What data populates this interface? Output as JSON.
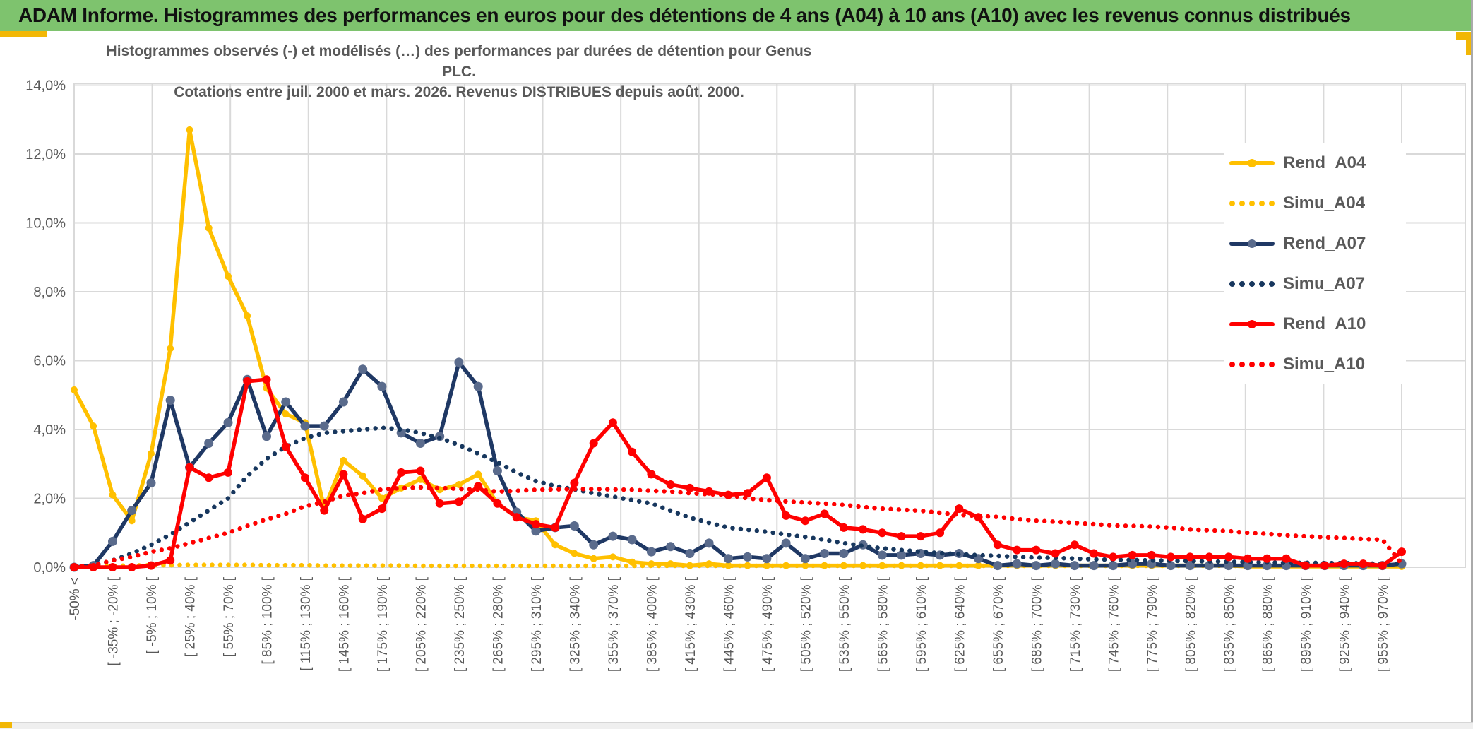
{
  "header": {
    "title": "ADAM Informe. Histogrammes des performances en euros pour des détentions de 4 ans (A04) à 10 ans (A10) avec les revenus connus distribués",
    "bg_color": "#7EC36E",
    "accent_color": "#F2B705"
  },
  "chart_data": {
    "type": "line",
    "title_line1": "Histogrammes observés (-) et modélisés (…) des performances par durées de détention pour Genus PLC.",
    "title_line2": "Cotations entre juil. 2000 et mars. 2026. Revenus DISTRIBUES depuis août. 2000.",
    "ylabel": "",
    "xlabel": "",
    "ylim": [
      0,
      14
    ],
    "y_ticks": [
      "0,0%",
      "2,0%",
      "4,0%",
      "6,0%",
      "8,0%",
      "10,0%",
      "12,0%",
      "14,0%"
    ],
    "grid": true,
    "legend_position": "right-overlay",
    "points_per_label": 2,
    "x_labels": [
      "-50% <",
      "[ -35% ; -20% [",
      "[ -5% ; 10% [",
      "[ 25% ; 40% [",
      "[ 55% ; 70% [",
      "[ 85% ; 100% [",
      "[ 115% ; 130% [",
      "[ 145% ; 160% [",
      "[ 175% ; 190% [",
      "[ 205% ; 220% [",
      "[ 235% ; 250% [",
      "[ 265% ; 280% [",
      "[ 295% ; 310% [",
      "[ 325% ; 340% [",
      "[ 355% ; 370% [",
      "[ 385% ; 400% [",
      "[ 415% ; 430% [",
      "[ 445% ; 460% [",
      "[ 475% ; 490% [",
      "[ 505% ; 520% [",
      "[ 535% ; 550% [",
      "[ 565% ; 580% [",
      "[ 595% ; 610% [",
      "[ 625% ; 640% [",
      "[ 655% ; 670% [",
      "[ 685% ; 700% [",
      "[ 715% ; 730% [",
      "[ 745% ; 760% [",
      "[ 775% ; 790% [",
      "[ 805% ; 820% [",
      "[ 835% ; 850% [",
      "[ 865% ; 880% [",
      "[ 895% ; 910% [",
      "[ 925% ; 940% [",
      "[ 955% ; 970% ["
    ],
    "colors": {
      "gold": "#FFC000",
      "navy": "#1F3864",
      "navy_marker": "#5A6B8C",
      "red": "#FF0000",
      "grid": "#D9D9D9",
      "axis_text": "#595959"
    },
    "series": [
      {
        "name": "Rend_A04",
        "style": "solid",
        "color": "#FFC000",
        "marker_color": "#FFC000",
        "marker_r": 5,
        "values": [
          5.15,
          4.1,
          2.1,
          1.35,
          3.3,
          6.35,
          12.7,
          9.85,
          8.45,
          7.3,
          5.2,
          4.45,
          4.2,
          1.7,
          3.1,
          2.65,
          2.0,
          2.3,
          2.55,
          2.25,
          2.4,
          2.7,
          1.85,
          1.45,
          1.35,
          0.65,
          0.4,
          0.25,
          0.3,
          0.15,
          0.1,
          0.1,
          0.05,
          0.1,
          0.05,
          0.05,
          0.05,
          0.05,
          0.05,
          0.05,
          0.05,
          0.05,
          0.05,
          0.05,
          0.05,
          0.05,
          0.05,
          0.05,
          0.05,
          0.05,
          0.05,
          0.05,
          0.05,
          0.05,
          0.05,
          0.05,
          0.05,
          0.05,
          0.05,
          0.05,
          0.05,
          0.02,
          0.02,
          0.02,
          0.02,
          0.02,
          0.02,
          0.02,
          0.02,
          0.02
        ]
      },
      {
        "name": "Simu_A04",
        "style": "dotted",
        "color": "#FFC000",
        "values": [
          0.02,
          0.03,
          0.04,
          0.05,
          0.06,
          0.06,
          0.07,
          0.07,
          0.07,
          0.07,
          0.06,
          0.06,
          0.06,
          0.05,
          0.05,
          0.05,
          0.05,
          0.05,
          0.04,
          0.04,
          0.04,
          0.04,
          0.04,
          0.04,
          0.04,
          0.04,
          0.04,
          0.04,
          0.04,
          0.04,
          0.04,
          0.04,
          0.04,
          0.04,
          0.04,
          0.04,
          0.04,
          0.04,
          0.04,
          0.04,
          0.04,
          0.04,
          0.04,
          0.04,
          0.04,
          0.04,
          0.04,
          0.04,
          0.04,
          0.04,
          0.04,
          0.04,
          0.04,
          0.04,
          0.04,
          0.04,
          0.04,
          0.04,
          0.04,
          0.04,
          0.04,
          0.04,
          0.04,
          0.04,
          0.04,
          0.04,
          0.04,
          0.04,
          0.04,
          0.04
        ]
      },
      {
        "name": "Rend_A07",
        "style": "solid",
        "color": "#1F3864",
        "marker_color": "#5A6B8C",
        "marker_r": 6.5,
        "values": [
          0.0,
          0.05,
          0.75,
          1.65,
          2.45,
          4.85,
          2.9,
          3.6,
          4.2,
          5.45,
          3.8,
          4.8,
          4.1,
          4.1,
          4.8,
          5.75,
          5.25,
          3.9,
          3.6,
          3.8,
          5.95,
          5.25,
          2.8,
          1.6,
          1.05,
          1.15,
          1.2,
          0.65,
          0.9,
          0.8,
          0.45,
          0.6,
          0.4,
          0.7,
          0.25,
          0.3,
          0.25,
          0.7,
          0.25,
          0.4,
          0.4,
          0.65,
          0.35,
          0.35,
          0.4,
          0.35,
          0.4,
          0.25,
          0.05,
          0.1,
          0.05,
          0.1,
          0.05,
          0.05,
          0.05,
          0.1,
          0.1,
          0.05,
          0.05,
          0.05,
          0.05,
          0.05,
          0.05,
          0.05,
          0.05,
          0.05,
          0.05,
          0.05,
          0.05,
          0.1
        ]
      },
      {
        "name": "Simu_A07",
        "style": "dotted",
        "color": "#17375E",
        "values": [
          0.02,
          0.05,
          0.2,
          0.4,
          0.65,
          0.95,
          1.3,
          1.65,
          2.0,
          2.65,
          3.15,
          3.5,
          3.75,
          3.9,
          3.95,
          4.0,
          4.05,
          4.0,
          3.9,
          3.75,
          3.55,
          3.3,
          3.05,
          2.75,
          2.5,
          2.36,
          2.26,
          2.15,
          2.05,
          1.95,
          1.85,
          1.64,
          1.44,
          1.29,
          1.15,
          1.09,
          1.03,
          0.95,
          0.88,
          0.8,
          0.7,
          0.62,
          0.55,
          0.5,
          0.45,
          0.41,
          0.38,
          0.35,
          0.33,
          0.3,
          0.28,
          0.27,
          0.25,
          0.23,
          0.22,
          0.21,
          0.2,
          0.19,
          0.18,
          0.17,
          0.16,
          0.15,
          0.14,
          0.13,
          0.13,
          0.12,
          0.12,
          0.11,
          0.1,
          0.1
        ]
      },
      {
        "name": "Rend_A10",
        "style": "solid",
        "color": "#FF0000",
        "marker_color": "#FF0000",
        "marker_r": 6,
        "values": [
          0.0,
          0.0,
          0.0,
          0.0,
          0.05,
          0.2,
          2.9,
          2.6,
          2.75,
          5.4,
          5.45,
          3.5,
          2.6,
          1.65,
          2.7,
          1.4,
          1.7,
          2.75,
          2.8,
          1.85,
          1.9,
          2.35,
          1.85,
          1.45,
          1.25,
          1.15,
          2.45,
          3.6,
          4.2,
          3.35,
          2.7,
          2.4,
          2.3,
          2.2,
          2.1,
          2.15,
          2.6,
          1.5,
          1.35,
          1.55,
          1.15,
          1.1,
          1.0,
          0.9,
          0.9,
          1.0,
          1.7,
          1.45,
          0.65,
          0.5,
          0.5,
          0.4,
          0.65,
          0.4,
          0.3,
          0.35,
          0.35,
          0.3,
          0.3,
          0.3,
          0.3,
          0.25,
          0.25,
          0.25,
          0.05,
          0.05,
          0.1,
          0.1,
          0.05,
          0.45
        ]
      },
      {
        "name": "Simu_A10",
        "style": "dotted",
        "color": "#FF0000",
        "values": [
          0.02,
          0.05,
          0.2,
          0.3,
          0.45,
          0.55,
          0.7,
          0.85,
          1.0,
          1.2,
          1.39,
          1.55,
          1.77,
          1.9,
          2.08,
          2.15,
          2.26,
          2.3,
          2.32,
          2.3,
          2.28,
          2.25,
          2.2,
          2.22,
          2.25,
          2.26,
          2.27,
          2.27,
          2.26,
          2.25,
          2.22,
          2.2,
          2.15,
          2.12,
          2.1,
          2.0,
          1.95,
          1.91,
          1.88,
          1.85,
          1.81,
          1.75,
          1.7,
          1.67,
          1.64,
          1.58,
          1.52,
          1.49,
          1.46,
          1.4,
          1.35,
          1.32,
          1.29,
          1.25,
          1.21,
          1.2,
          1.18,
          1.15,
          1.1,
          1.07,
          1.05,
          1.0,
          0.97,
          0.93,
          0.9,
          0.87,
          0.85,
          0.82,
          0.8,
          0.1
        ]
      }
    ]
  }
}
